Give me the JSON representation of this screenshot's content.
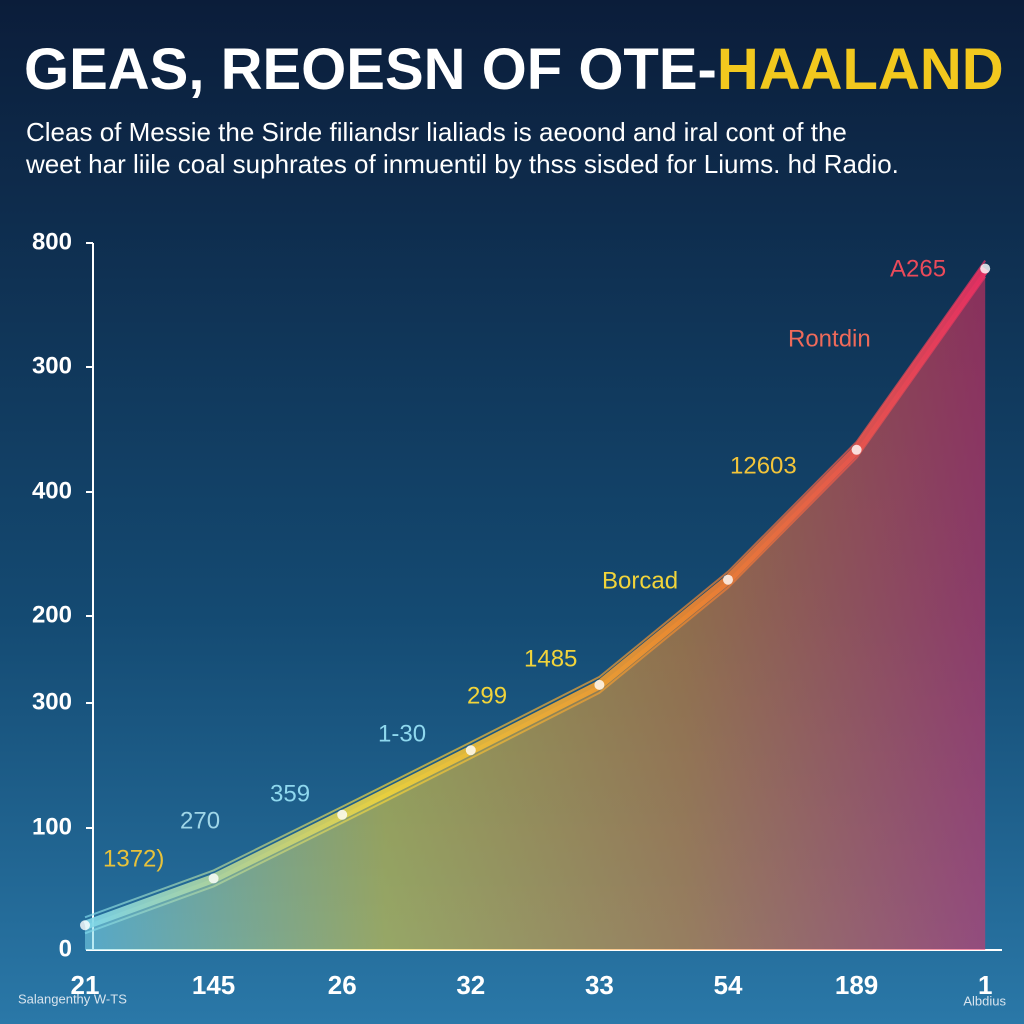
{
  "chart_data": {
    "type": "line",
    "title": "GEAS, REOESN OF OTE-",
    "title_highlight": "HAALAND",
    "subtitle_lines": [
      "Cleas of Messie the Sirde filiandsr lialiads is aeoond and iral cont of the",
      "weet har liile coal suphrates of inmuentil by thss sisded for Liums. hd Radio."
    ],
    "categories": [
      "21",
      "145",
      "26",
      "32",
      "33",
      "54",
      "189",
      "1"
    ],
    "y_axis_labels": [
      "800",
      "300",
      "400",
      "200",
      "300",
      "100",
      "0"
    ],
    "ylim": [
      0,
      800
    ],
    "series": [
      {
        "colors": [
          "#7fd8ec",
          "#f2d43a",
          "#f28a2e",
          "#ec2f63"
        ],
        "values": [
          28,
          81,
          153,
          226,
          300,
          419,
          566,
          771
        ]
      }
    ],
    "annotations": [
      {
        "text": "1372)",
        "color": "#e8c23a"
      },
      {
        "text": "270",
        "color": "#9fd6e8"
      },
      {
        "text": "359",
        "color": "#8fd8ee"
      },
      {
        "text": "1-30",
        "color": "#8fd8ee"
      },
      {
        "text": "299",
        "color": "#f2d43a"
      },
      {
        "text": "1485",
        "color": "#f2d43a"
      },
      {
        "text": "Borcad",
        "color": "#f2d43a"
      },
      {
        "text": "12603",
        "color": "#f2c43a"
      },
      {
        "text": "Rontdin",
        "color": "#ef6a5a"
      },
      {
        "text": "A265",
        "color": "#ec4a5a"
      }
    ],
    "footer_left": "Salangenthy W-TS",
    "footer_right": "Albdius"
  }
}
